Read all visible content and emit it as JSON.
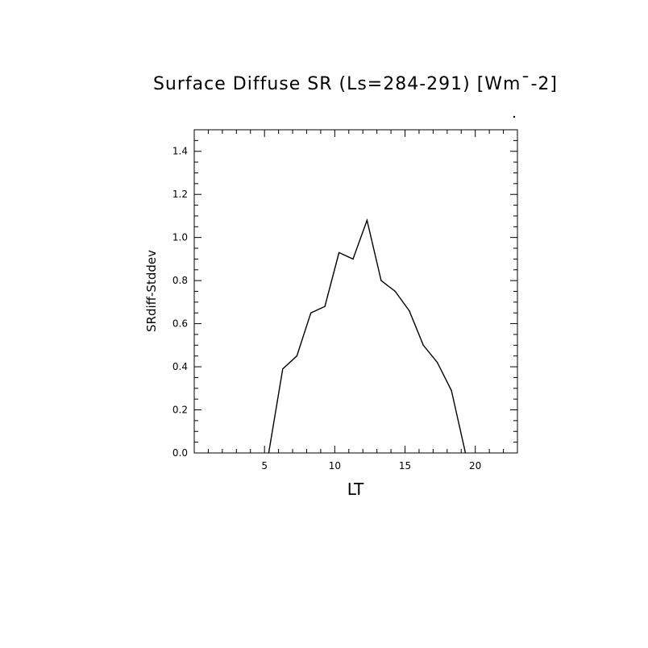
{
  "chart_data": {
    "type": "line",
    "title": "Surface Diffuse SR (Ls=284-291) [Wm¯-2]",
    "xlabel": "LT",
    "ylabel": "SRdiff-Stddev",
    "xlim": [
      0,
      23
    ],
    "ylim": [
      0,
      1.5
    ],
    "xticks": [
      5,
      10,
      15,
      20
    ],
    "xtick_labels": [
      "5",
      "10",
      "15",
      "20"
    ],
    "yticks": [
      0.0,
      0.2,
      0.4,
      0.6,
      0.8,
      1.0,
      1.2,
      1.4
    ],
    "ytick_labels": [
      "0.0",
      "0.2",
      "0.4",
      "0.6",
      "0.8",
      "1.0",
      "1.2",
      "1.4"
    ],
    "grid": false,
    "series": [
      {
        "x": [
          5.3,
          6.3,
          7.3,
          8.3,
          9.3,
          10.3,
          11.3,
          12.3,
          13.3,
          14.3,
          15.3,
          16.3,
          17.3,
          18.3,
          19.3
        ],
        "values": [
          0.0,
          0.39,
          0.45,
          0.65,
          0.68,
          0.93,
          0.9,
          1.08,
          0.8,
          0.75,
          0.66,
          0.5,
          0.42,
          0.29,
          0.0
        ]
      }
    ]
  }
}
